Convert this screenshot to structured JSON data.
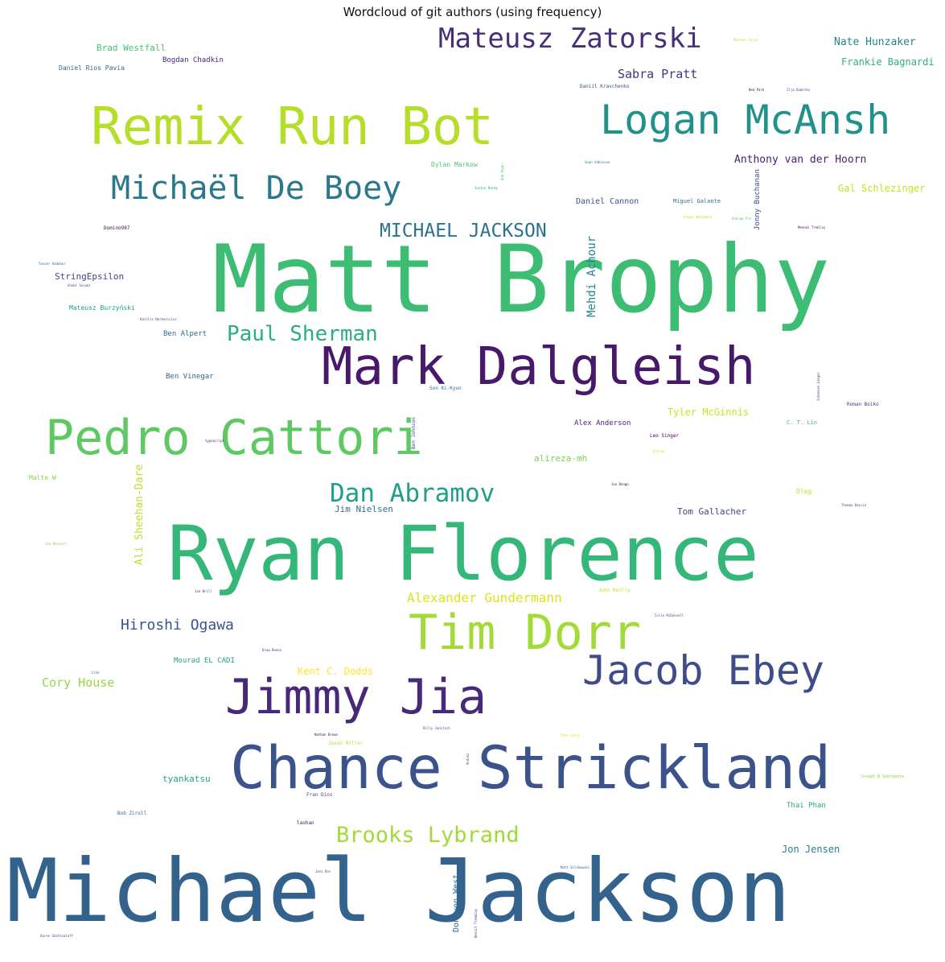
{
  "title": "Wordcloud of git authors (using frequency)",
  "words": [
    {
      "text": "Michael Jackson",
      "color": "#33638d"
    },
    {
      "text": "Matt Brophy",
      "color": "#3dbc74"
    },
    {
      "text": "Ryan Florence",
      "color": "#35b779"
    },
    {
      "text": "Chance Strickland",
      "color": "#3b528b"
    },
    {
      "text": "Remix Run Bot",
      "color": "#b5de2b"
    },
    {
      "text": "Mark Dalgleish",
      "color": "#48186a"
    },
    {
      "text": "Pedro Cattori",
      "color": "#5ec962"
    },
    {
      "text": "Jimmy Jia",
      "color": "#482878"
    },
    {
      "text": "Tim Dorr",
      "color": "#a2da37"
    },
    {
      "text": "Logan McAnsh",
      "color": "#21918c"
    },
    {
      "text": "Jacob Ebey",
      "color": "#3e4c8a"
    },
    {
      "text": "Michaël De Boey",
      "color": "#2a788e"
    },
    {
      "text": "Mateusz Zatorski",
      "color": "#472d7b"
    },
    {
      "text": "Dan Abramov",
      "color": "#1f9e89"
    },
    {
      "text": "Paul Sherman",
      "color": "#29af7f"
    },
    {
      "text": "Brooks Lybrand",
      "color": "#a0da39"
    },
    {
      "text": "MICHAEL JACKSON",
      "color": "#2c728e"
    },
    {
      "text": "Hiroshi Ogawa",
      "color": "#3b528b"
    },
    {
      "text": "Alexander Gundermann",
      "color": "#dde318"
    },
    {
      "text": "Sabra Pratt",
      "color": "#46337e"
    },
    {
      "text": "Anthony van der Hoorn",
      "color": "#482173"
    },
    {
      "text": "Nate Hunzaker",
      "color": "#25858e"
    },
    {
      "text": "Frankie Bagnardi",
      "color": "#2db27d"
    },
    {
      "text": "Cory House",
      "color": "#95d840"
    },
    {
      "text": "Mehdi Achour",
      "color": "#26828e"
    },
    {
      "text": "Ali Sheehan-Dare",
      "color": "#bddf26"
    },
    {
      "text": "Tyler McGinnis",
      "color": "#d0e11c"
    },
    {
      "text": "Gal Schlezinger",
      "color": "#c8e020"
    },
    {
      "text": "Kent C. Dodds",
      "color": "#fde725"
    },
    {
      "text": "Brad Westfall",
      "color": "#4ac16d"
    },
    {
      "text": "Jon Jensen",
      "color": "#287d8e"
    },
    {
      "text": "alireza-mh",
      "color": "#7ad151"
    },
    {
      "text": "StringEpsilon",
      "color": "#404387"
    },
    {
      "text": "tyankatsu",
      "color": "#20a386"
    },
    {
      "text": "Jim Nielsen",
      "color": "#2e6f8e"
    },
    {
      "text": "Tom Gallacher",
      "color": "#414487"
    },
    {
      "text": "Daniel Cannon",
      "color": "#3b528b"
    },
    {
      "text": "Bogdan Chadkin",
      "color": "#482475"
    },
    {
      "text": "Jonny Buchanan",
      "color": "#3f4889"
    },
    {
      "text": "Ben Vinegar",
      "color": "#33638d"
    },
    {
      "text": "Ben Alpert",
      "color": "#2f6c8e"
    },
    {
      "text": "Mourad EL CADI",
      "color": "#1fa088"
    },
    {
      "text": "Alex Anderson",
      "color": "#482576"
    },
    {
      "text": "Donavon West",
      "color": "#31688e"
    },
    {
      "text": "Thai Phan",
      "color": "#27ad81"
    },
    {
      "text": "Daniel Rios Pavia",
      "color": "#31688e"
    },
    {
      "text": "Dylan Markow",
      "color": "#52c569"
    },
    {
      "text": "Mateusz Burzyński",
      "color": "#1e9b8a"
    },
    {
      "text": "Miguel Galante",
      "color": "#306a8e"
    },
    {
      "text": "Oleg",
      "color": "#c2df23"
    },
    {
      "text": "Daniil Kravchenko",
      "color": "#3d4e8a"
    },
    {
      "text": "Leo Singer",
      "color": "#44015b"
    },
    {
      "text": "Malte W",
      "color": "#84d44b"
    },
    {
      "text": "C. T. Lin",
      "color": "#39b97a"
    },
    {
      "text": "Roman Boiko",
      "color": "#453781"
    },
    {
      "text": "Fran Dios",
      "color": "#3f4889"
    },
    {
      "text": "Bob Ziroll",
      "color": "#2d708e"
    },
    {
      "text": "Son Ki-Kyun",
      "color": "#2e6e8e"
    },
    {
      "text": "Joseph W Sobrepere",
      "color": "#8ed645"
    },
    {
      "text": "laohan",
      "color": "#481467"
    },
    {
      "text": "Domino987",
      "color": "#46085c"
    },
    {
      "text": "John Reilly",
      "color": "#d2e21b"
    },
    {
      "text": "Ben Johnson",
      "color": "#3a548c"
    },
    {
      "text": "Jason Miller",
      "color": "#bade28"
    },
    {
      "text": "Dan Levy",
      "color": "#e7e419"
    },
    {
      "text": "Ilja Daderko",
      "color": "#3e4989"
    },
    {
      "text": "Ned Park",
      "color": "#471063"
    },
    {
      "text": "Sean Adkinson",
      "color": "#2a788e"
    },
    {
      "text": "Justin Reidy",
      "color": "#21a685"
    },
    {
      "text": "Bob Roger",
      "color": "#52c569"
    },
    {
      "text": "Gregor Weinmann",
      "color": "#c5e021"
    },
    {
      "text": "Meenal Trebliq",
      "color": "#46085c"
    },
    {
      "text": "Yasser Kaddour",
      "color": "#31688e"
    },
    {
      "text": "Ghobi Suzuki",
      "color": "#3e4a89"
    },
    {
      "text": "Karolis Narkevicius",
      "color": "#3b518b"
    },
    {
      "text": "Johannes Langer",
      "color": "#404588"
    },
    {
      "text": "Jon Reinert",
      "color": "#7fd34e"
    },
    {
      "text": "Joe Brill",
      "color": "#482979"
    },
    {
      "text": "Colin McDonnell",
      "color": "#3b528b"
    },
    {
      "text": "Drew Reese",
      "color": "#472c7a"
    },
    {
      "text": "Link",
      "color": "#2a788e"
    },
    {
      "text": "Nathan Brown",
      "color": "#440154"
    },
    {
      "text": "Billy Janitsch",
      "color": "#3e4c8a"
    },
    {
      "text": "Andrei",
      "color": "#404588"
    },
    {
      "text": "Jon Dengo",
      "color": "#440154"
    },
    {
      "text": "Thomas Daccin",
      "color": "#3e4989"
    },
    {
      "text": "typescript",
      "color": "#482576"
    },
    {
      "text": "Undraw",
      "color": "#d8e219"
    },
    {
      "text": "Jens Bos",
      "color": "#3e4c8a"
    },
    {
      "text": "Matt Szlikowski",
      "color": "#3a548c"
    },
    {
      "text": "Benoit Tremblay",
      "color": "#3f4788"
    },
    {
      "text": "Aaron Shafovaloff",
      "color": "#3b528b"
    },
    {
      "text": "Michael Oxler",
      "color": "#c2df23"
    },
    {
      "text": "Undraw Pro",
      "color": "#52c569"
    }
  ]
}
